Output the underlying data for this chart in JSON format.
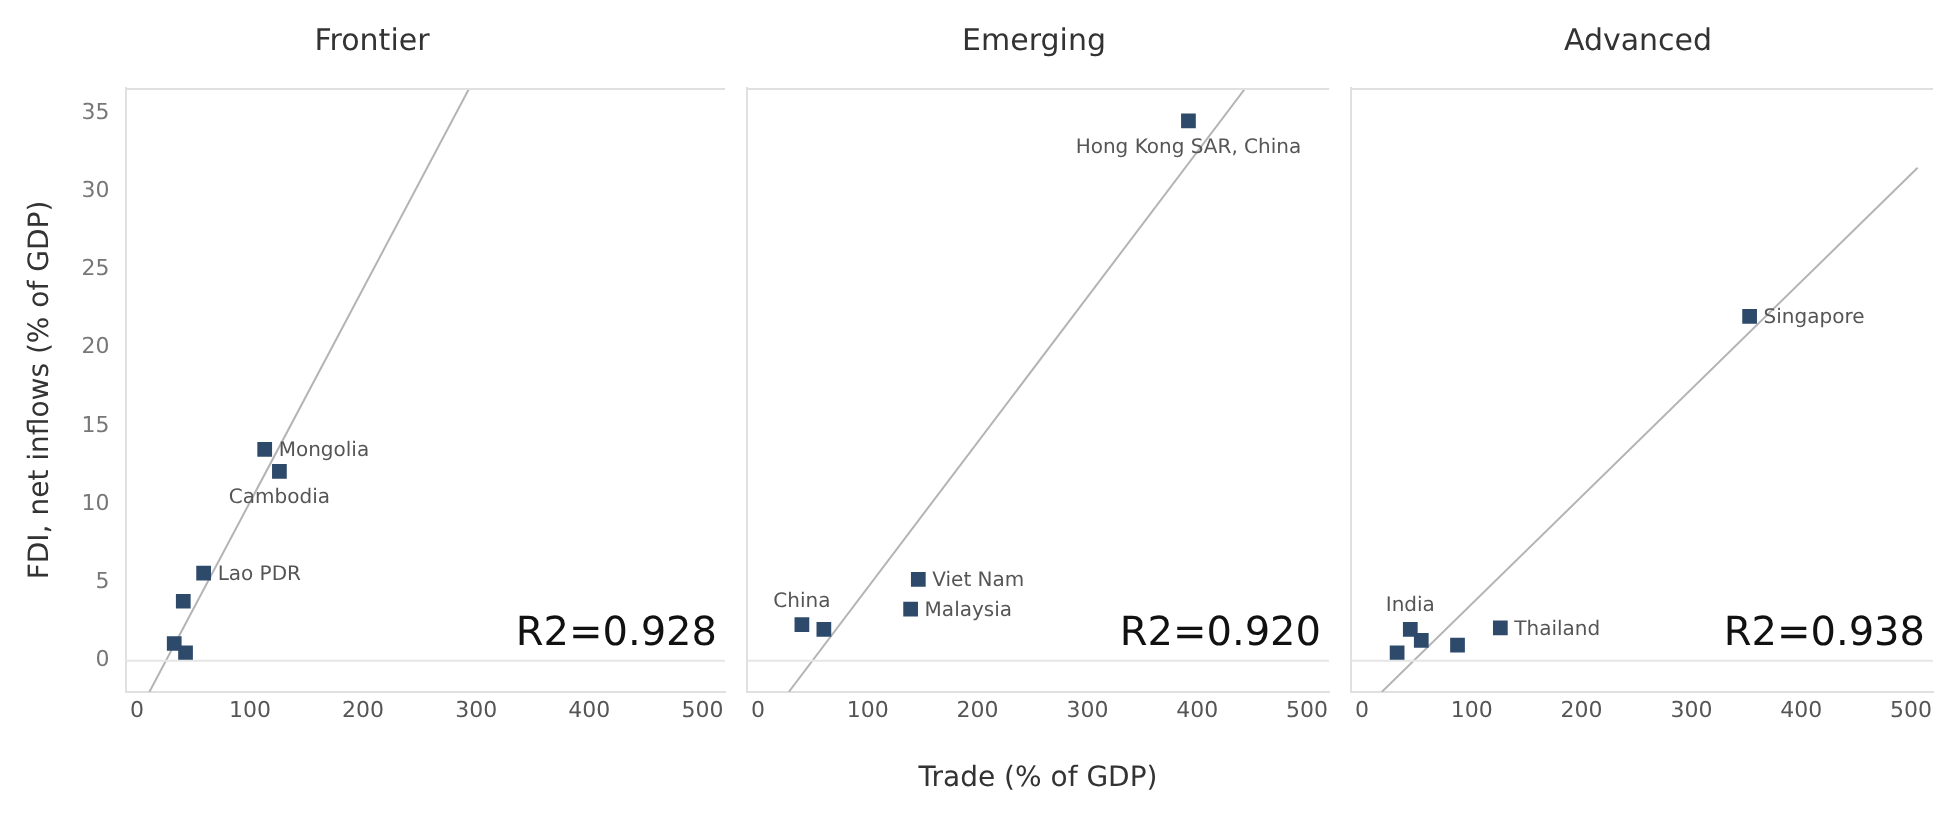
{
  "chart_data": [
    {
      "type": "scatter",
      "title": "Frontier",
      "ylabel": "FDI, net inflows (% of GDP)",
      "xlim": [
        -10,
        520
      ],
      "xticks": [
        0,
        100,
        200,
        300,
        400,
        500
      ],
      "ylim": [
        -2,
        36.6
      ],
      "yticks": [
        0,
        5,
        10,
        15,
        20,
        25,
        30,
        35
      ],
      "ref_lines": [
        {
          "axis": "y",
          "value": 0,
          "color": "#e6e6e6"
        }
      ],
      "series": [
        {
          "color": "#2e4a6b",
          "marker": "square",
          "x": [
            113,
            126,
            59,
            41,
            33,
            43
          ],
          "values": [
            13.5,
            12.1,
            5.6,
            3.8,
            1.1,
            0.5
          ]
        },
        {
          "type": "line",
          "color": "#b4b4b4",
          "x": [
            11,
            294
          ],
          "values": [
            -2,
            36.6
          ]
        }
      ],
      "annotations": [
        {
          "text": "Mongolia",
          "x": 113,
          "y": 13.5
        },
        {
          "text": "Cambodia",
          "x": 126,
          "y": 12.1
        },
        {
          "text": "Lao PDR",
          "x": 59,
          "y": 5.6
        },
        "R2=0.928"
      ]
    },
    {
      "type": "scatter",
      "title": "Emerging",
      "xlabel": "Trade (% of GDP)",
      "tick_labels": "x",
      "xlim": [
        -10,
        520
      ],
      "xticks": [
        0,
        100,
        200,
        300,
        400,
        500
      ],
      "ylim": [
        -2,
        36.6
      ],
      "ref_lines": [
        {
          "axis": "y",
          "value": 0,
          "color": "#e6e6e6"
        }
      ],
      "series": [
        {
          "color": "#2e4a6b",
          "marker": "square",
          "x": [
            392,
            146,
            139,
            40,
            60
          ],
          "values": [
            34.5,
            5.2,
            3.3,
            2.3,
            2.0
          ]
        },
        {
          "type": "line",
          "color": "#b4b4b4",
          "x": [
            28,
            444
          ],
          "values": [
            -2,
            36.6
          ]
        }
      ],
      "annotations": [
        {
          "text": "Hong Kong SAR, China",
          "x": 392,
          "y": 34.5
        },
        {
          "text": "Viet Nam",
          "x": 146,
          "y": 5.2
        },
        {
          "text": "Malaysia",
          "x": 139,
          "y": 3.3
        },
        {
          "text": "China",
          "x": 40,
          "y": 2.3
        },
        "R2=0.920"
      ]
    },
    {
      "type": "scatter",
      "title": "Advanced",
      "tick_labels": "x",
      "xlim": [
        -10,
        520
      ],
      "xticks": [
        0,
        100,
        200,
        300,
        400,
        500
      ],
      "ylim": [
        -2,
        36.6
      ],
      "ref_lines": [
        {
          "axis": "y",
          "value": 0,
          "color": "#e6e6e6"
        }
      ],
      "series": [
        {
          "color": "#2e4a6b",
          "marker": "square",
          "x": [
            353,
            126,
            44,
            54,
            32,
            87
          ],
          "values": [
            22.0,
            2.1,
            2.0,
            1.3,
            0.5,
            1.0
          ]
        },
        {
          "type": "line",
          "color": "#b4b4b4",
          "x": [
            18,
            506
          ],
          "values": [
            -2,
            31.5
          ]
        }
      ],
      "annotations": [
        {
          "text": "Singapore",
          "x": 353,
          "y": 22.0
        },
        {
          "text": "Thailand",
          "x": 126,
          "y": 2.1
        },
        {
          "text": "India",
          "x": 44,
          "y": 2.0
        },
        "R2=0.938"
      ]
    }
  ]
}
